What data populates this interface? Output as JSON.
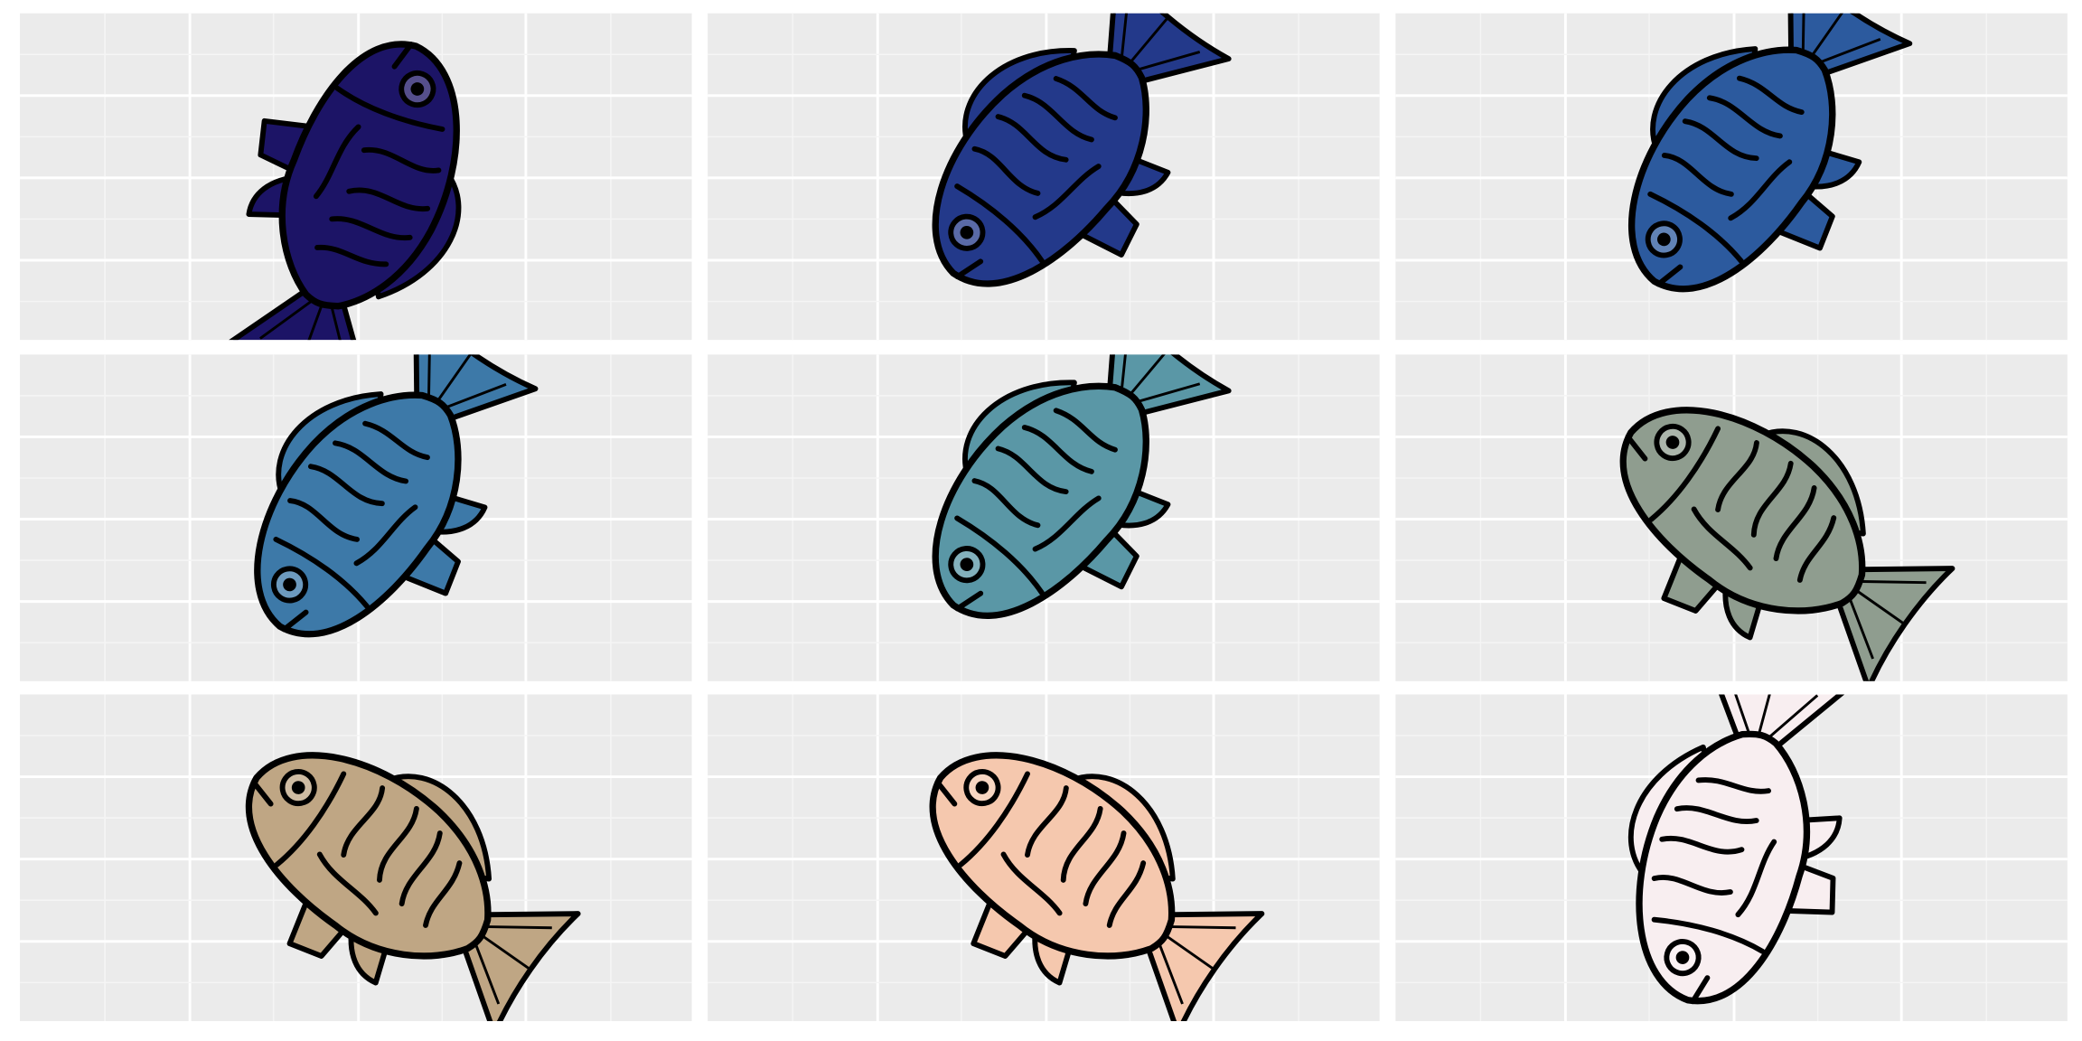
{
  "panels": [
    {
      "fill": "#1c1466"
    },
    {
      "fill": "#23398a"
    },
    {
      "fill": "#2c5a9e"
    },
    {
      "fill": "#3d79a8"
    },
    {
      "fill": "#5a97a6"
    },
    {
      "fill": "#8f9d8f"
    },
    {
      "fill": "#bfa684"
    },
    {
      "fill": "#f5c8ae"
    },
    {
      "fill": "#f8eef0"
    }
  ]
}
